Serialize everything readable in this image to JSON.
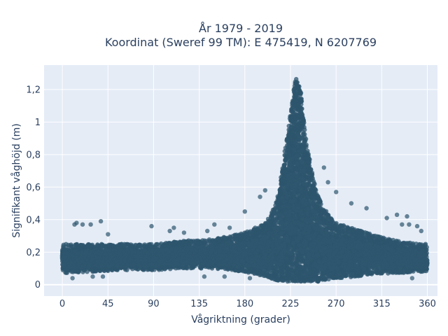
{
  "chart_data": {
    "type": "scatter",
    "title_line1": "År 1979 - 2019",
    "title_line2": "Koordinat (Sweref 99 TM): E 475419, N 6207769",
    "xlabel": "Vågriktning (grader)",
    "ylabel": "Signifikant våghöjd (m)",
    "xlim": [
      -18,
      370
    ],
    "ylim": [
      -0.07,
      1.35
    ],
    "xticks": [
      0,
      45,
      90,
      135,
      180,
      225,
      270,
      315,
      360
    ],
    "xtick_labels": [
      "0",
      "45",
      "90",
      "135",
      "180",
      "225",
      "270",
      "315",
      "360"
    ],
    "yticks": [
      0,
      0.2,
      0.4,
      0.6,
      0.8,
      1.0,
      1.2
    ],
    "ytick_labels": [
      "0",
      "0,2",
      "0,4",
      "0,6",
      "0,8",
      "1",
      "1,2"
    ],
    "grid": true,
    "legend": "none",
    "marker_color": "#2e566e",
    "plot_background": "#e5ecf6",
    "envelope": {
      "direction": [
        0,
        30,
        60,
        90,
        120,
        150,
        180,
        200,
        210,
        215,
        220,
        225,
        230,
        235,
        240,
        245,
        250,
        255,
        260,
        270,
        290,
        310,
        330,
        350,
        360
      ],
      "upper": [
        0.25,
        0.25,
        0.25,
        0.25,
        0.27,
        0.28,
        0.32,
        0.38,
        0.48,
        0.62,
        0.85,
        1.05,
        1.27,
        1.2,
        0.9,
        0.72,
        0.6,
        0.5,
        0.45,
        0.38,
        0.34,
        0.3,
        0.27,
        0.25,
        0.25
      ],
      "lower": [
        0.07,
        0.08,
        0.09,
        0.09,
        0.1,
        0.1,
        0.08,
        0.05,
        0.03,
        0.02,
        0.02,
        0.02,
        0.02,
        0.02,
        0.02,
        0.02,
        0.02,
        0.02,
        0.03,
        0.04,
        0.05,
        0.07,
        0.07,
        0.08,
        0.08
      ]
    },
    "outliers": [
      {
        "x": 12,
        "y": 0.37
      },
      {
        "x": 14,
        "y": 0.38
      },
      {
        "x": 20,
        "y": 0.37
      },
      {
        "x": 28,
        "y": 0.37
      },
      {
        "x": 38,
        "y": 0.39
      },
      {
        "x": 45,
        "y": 0.31
      },
      {
        "x": 88,
        "y": 0.36
      },
      {
        "x": 106,
        "y": 0.33
      },
      {
        "x": 110,
        "y": 0.35
      },
      {
        "x": 120,
        "y": 0.32
      },
      {
        "x": 143,
        "y": 0.33
      },
      {
        "x": 150,
        "y": 0.37
      },
      {
        "x": 165,
        "y": 0.35
      },
      {
        "x": 180,
        "y": 0.45
      },
      {
        "x": 195,
        "y": 0.54
      },
      {
        "x": 200,
        "y": 0.58
      },
      {
        "x": 258,
        "y": 0.72
      },
      {
        "x": 262,
        "y": 0.63
      },
      {
        "x": 270,
        "y": 0.57
      },
      {
        "x": 285,
        "y": 0.5
      },
      {
        "x": 300,
        "y": 0.47
      },
      {
        "x": 320,
        "y": 0.41
      },
      {
        "x": 330,
        "y": 0.43
      },
      {
        "x": 335,
        "y": 0.37
      },
      {
        "x": 340,
        "y": 0.42
      },
      {
        "x": 342,
        "y": 0.37
      },
      {
        "x": 350,
        "y": 0.36
      },
      {
        "x": 354,
        "y": 0.33
      },
      {
        "x": 10,
        "y": 0.04
      },
      {
        "x": 30,
        "y": 0.05
      },
      {
        "x": 40,
        "y": 0.05
      },
      {
        "x": 140,
        "y": 0.05
      },
      {
        "x": 160,
        "y": 0.05
      },
      {
        "x": 185,
        "y": 0.04
      },
      {
        "x": 345,
        "y": 0.04
      }
    ]
  }
}
